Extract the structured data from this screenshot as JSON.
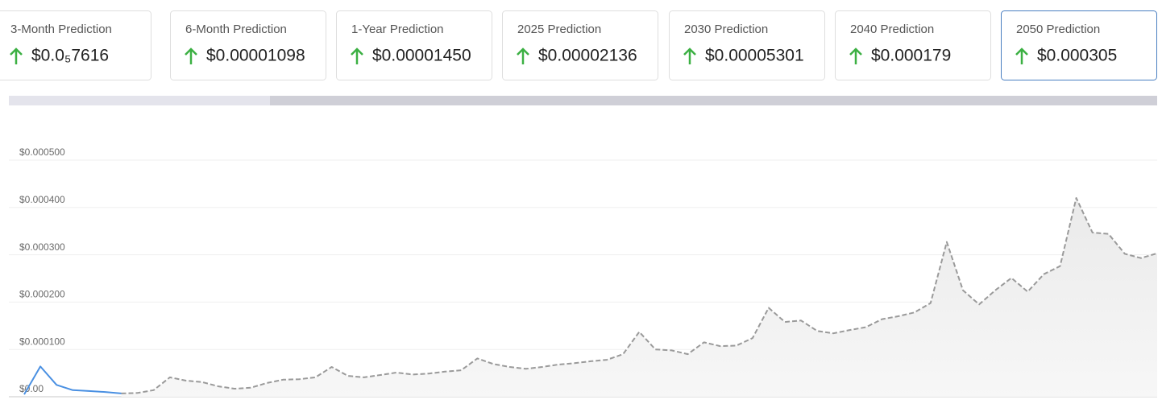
{
  "cards": [
    {
      "label": "3-Month Prediction",
      "value": "$0.0₅7616"
    },
    {
      "label": "6-Month Prediction",
      "value": "$0.00001098"
    },
    {
      "label": "1-Year Prediction",
      "value": "$0.00001450"
    },
    {
      "label": "2025 Prediction",
      "value": "$0.00002136"
    },
    {
      "label": "2030 Prediction",
      "value": "$0.00005301"
    },
    {
      "label": "2040 Prediction",
      "value": "$0.000179"
    },
    {
      "label": "2050 Prediction",
      "value": "$0.000305"
    }
  ],
  "chart_data": {
    "type": "line",
    "ylim": [
      0,
      0.0005
    ],
    "yticks": [
      {
        "value": 0,
        "label": "$0.00"
      },
      {
        "value": 0.0001,
        "label": "$0.000100"
      },
      {
        "value": 0.0002,
        "label": "$0.000200"
      },
      {
        "value": 0.0003,
        "label": "$0.000300"
      },
      {
        "value": 0.0004,
        "label": "$0.000400"
      },
      {
        "value": 0.0005,
        "label": "$0.000500"
      }
    ],
    "grid": true,
    "series": [
      {
        "color": "#4a90e2",
        "style": "solid",
        "values": [
          5e-06,
          6.4e-05,
          2.5e-05,
          1.4e-05,
          1.2e-05,
          1e-05,
          7e-06,
          null,
          null,
          null,
          null,
          null,
          null,
          null,
          null,
          null,
          null,
          null,
          null,
          null,
          null,
          null,
          null,
          null,
          null,
          null,
          null,
          null,
          null,
          null,
          null,
          null,
          null,
          null,
          null,
          null,
          null,
          null,
          null,
          null,
          null,
          null,
          null,
          null,
          null,
          null,
          null,
          null,
          null,
          null,
          null,
          null,
          null,
          null,
          null,
          null,
          null,
          null,
          null,
          null,
          null,
          null,
          null,
          null,
          null,
          null,
          null,
          null,
          null,
          null,
          null
        ]
      },
      {
        "color": "#9a9a9a",
        "style": "dashed",
        "area": true,
        "values": [
          null,
          null,
          null,
          null,
          null,
          null,
          7e-06,
          8e-06,
          1.4e-05,
          4.1e-05,
          3.4e-05,
          3.1e-05,
          2.2e-05,
          1.7e-05,
          1.9e-05,
          2.9e-05,
          3.6e-05,
          3.7e-05,
          4.1e-05,
          6.3e-05,
          4.4e-05,
          4.1e-05,
          4.6e-05,
          5.1e-05,
          4.7e-05,
          4.9e-05,
          5.3e-05,
          5.6e-05,
          8.1e-05,
          6.9e-05,
          6.3e-05,
          5.9e-05,
          6.3e-05,
          6.8e-05,
          7.1e-05,
          7.5e-05,
          7.8e-05,
          9e-05,
          0.000137,
          0.0001,
          9.8e-05,
          9e-05,
          0.000115,
          0.000107,
          0.000108,
          0.000124,
          0.000188,
          0.000158,
          0.000161,
          0.000139,
          0.000134,
          0.000141,
          0.000147,
          0.000164,
          0.00017,
          0.000178,
          0.000198,
          0.000327,
          0.000225,
          0.000195,
          0.000225,
          0.000251,
          0.000222,
          0.000259,
          0.000276,
          0.00042,
          0.000347,
          0.000344,
          0.000302,
          0.000293,
          0.000303
        ]
      }
    ]
  }
}
